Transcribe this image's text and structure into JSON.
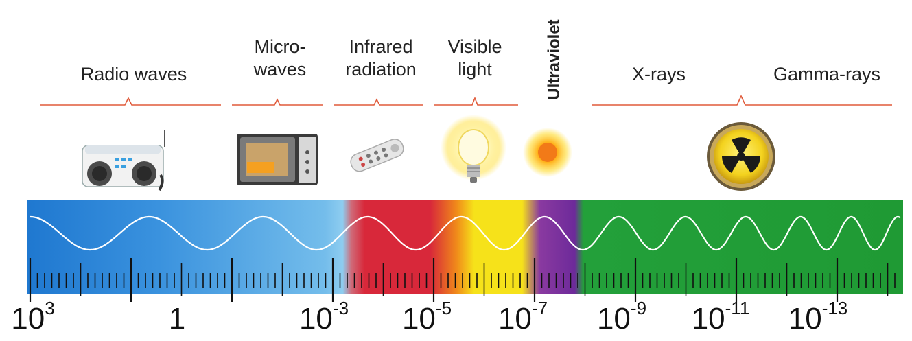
{
  "bands": [
    {
      "key": "radio",
      "line1": "Radio waves",
      "line2": ""
    },
    {
      "key": "micro",
      "line1": "Micro-",
      "line2": "waves"
    },
    {
      "key": "infrared",
      "line1": "Infrared",
      "line2": "radiation"
    },
    {
      "key": "visible",
      "line1": "Visible",
      "line2": "light"
    },
    {
      "key": "uv",
      "line1": "Ultraviolet",
      "line2": ""
    },
    {
      "key": "xray",
      "line1": "X-rays",
      "line2": ""
    },
    {
      "key": "gamma",
      "line1": "Gamma-rays",
      "line2": ""
    }
  ],
  "axis_labels": [
    {
      "base": "10",
      "exp": "3"
    },
    {
      "base": "1",
      "exp": ""
    },
    {
      "base": "10",
      "exp": "-3"
    },
    {
      "base": "10",
      "exp": "-5"
    },
    {
      "base": "10",
      "exp": "-7"
    },
    {
      "base": "10",
      "exp": "-9"
    },
    {
      "base": "10",
      "exp": "-11"
    },
    {
      "base": "10",
      "exp": "-13"
    }
  ],
  "icons": [
    "radio-icon",
    "microwave-oven-icon",
    "remote-control-icon",
    "light-bulb-icon",
    "sun-icon",
    "radiation-symbol-icon"
  ],
  "colors": {
    "radio": "#2a86d8",
    "micro": "#7cc4ee",
    "infrared": "#d8283a",
    "visible": "#f4e020",
    "uv": "#7b2fa8",
    "xray_gamma": "#23a03a",
    "bracket": "#e05a3a"
  }
}
